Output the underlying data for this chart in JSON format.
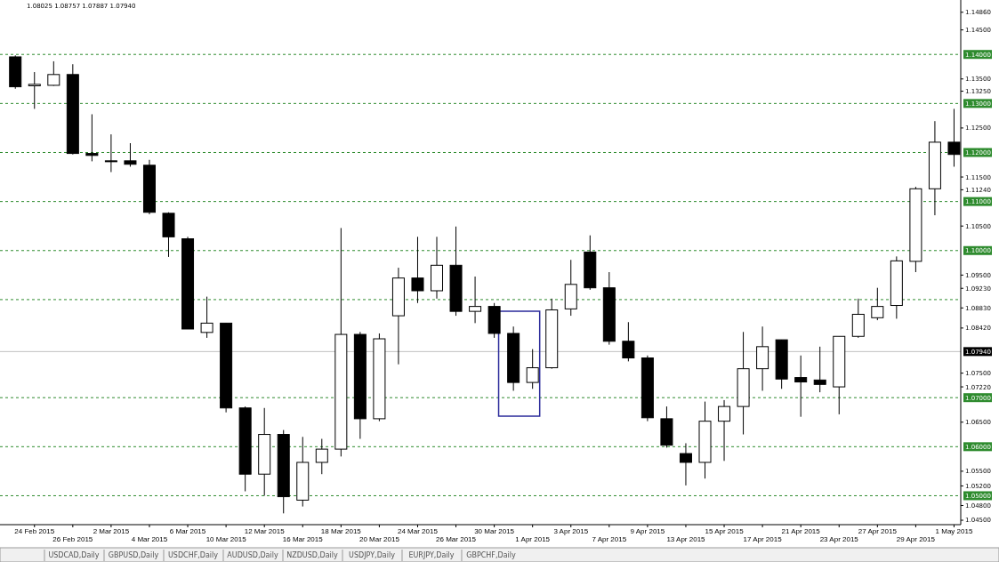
{
  "chart_data": {
    "type": "candlestick",
    "categories": [
      null,
      "24 Feb 2015",
      null,
      "26 Feb 2015",
      null,
      "2 Mar 2015",
      null,
      "4 Mar 2015",
      null,
      "6 Mar 2015",
      null,
      "10 Mar 2015",
      null,
      "12 Mar 2015",
      null,
      "16 Mar 2015",
      null,
      "18 Mar 2015",
      null,
      "20 Mar 2015",
      null,
      "24 Mar 2015",
      null,
      "26 Mar 2015",
      null,
      "30 Mar 2015",
      null,
      "1 Apr 2015",
      null,
      "3 Apr 2015",
      null,
      "7 Apr 2015",
      null,
      "9 Apr 2015",
      null,
      "13 Apr 2015",
      null,
      "15 Apr 2015",
      null,
      "17 Apr 2015",
      null,
      "21 Apr 2015",
      null,
      "23 Apr 2015",
      null,
      "27 Apr 2015",
      null,
      "29 Apr 2015",
      null,
      "1 May 2015"
    ],
    "ohlc": [
      [
        1.1395,
        1.1398,
        1.133,
        1.1334
      ],
      [
        1.1336,
        1.1364,
        1.1289,
        1.1339
      ],
      [
        1.1337,
        1.1386,
        1.1336,
        1.1359
      ],
      [
        1.1359,
        1.138,
        1.1196,
        1.1198
      ],
      [
        1.1198,
        1.1278,
        1.1182,
        1.1194
      ],
      [
        1.1183,
        1.1237,
        1.116,
        1.1182
      ],
      [
        1.1183,
        1.1219,
        1.1171,
        1.1176
      ],
      [
        1.1174,
        1.1185,
        1.1074,
        1.1078
      ],
      [
        1.1076,
        1.1078,
        1.0987,
        1.1028
      ],
      [
        1.1024,
        1.1028,
        1.084,
        1.084
      ],
      [
        1.0833,
        1.0906,
        1.0822,
        1.0852
      ],
      [
        1.0852,
        1.0852,
        1.067,
        1.0679
      ],
      [
        1.0679,
        1.0682,
        1.0509,
        1.0544
      ],
      [
        1.0544,
        1.0679,
        1.05,
        1.0625
      ],
      [
        1.0625,
        1.0634,
        1.0464,
        1.0498
      ],
      [
        1.0491,
        1.062,
        1.0478,
        1.0568
      ],
      [
        1.0568,
        1.0616,
        1.0544,
        1.0595
      ],
      [
        1.0595,
        1.1046,
        1.058,
        1.0829
      ],
      [
        1.0829,
        1.0834,
        1.0616,
        1.0657
      ],
      [
        1.0657,
        1.0831,
        1.0652,
        1.082
      ],
      [
        1.0867,
        1.0965,
        1.0768,
        1.0944
      ],
      [
        1.0944,
        1.1028,
        1.0893,
        1.0918
      ],
      [
        1.0918,
        1.1028,
        1.0902,
        1.097
      ],
      [
        1.097,
        1.1049,
        1.0867,
        1.0876
      ],
      [
        1.0876,
        1.0947,
        1.0852,
        1.0886
      ],
      [
        1.0886,
        1.0893,
        1.0822,
        1.0831
      ],
      [
        1.0831,
        1.0845,
        1.0714,
        1.0731
      ],
      [
        1.0731,
        1.0799,
        1.0718,
        1.0761
      ],
      [
        1.0761,
        1.0902,
        1.0759,
        1.0879
      ],
      [
        1.0881,
        1.0981,
        1.0867,
        1.0931
      ],
      [
        1.0997,
        1.1031,
        1.092,
        1.0924
      ],
      [
        1.0924,
        1.0956,
        1.0808,
        1.0815
      ],
      [
        1.0815,
        1.0854,
        1.0774,
        1.0781
      ],
      [
        1.0781,
        1.0786,
        1.0652,
        1.0659
      ],
      [
        1.0657,
        1.0682,
        1.0598,
        1.0603
      ],
      [
        1.0586,
        1.0607,
        1.0521,
        1.0568
      ],
      [
        1.0568,
        1.0692,
        1.0535,
        1.0652
      ],
      [
        1.0652,
        1.0695,
        1.0571,
        1.0682
      ],
      [
        1.0682,
        1.0834,
        1.0625,
        1.0759
      ],
      [
        1.0759,
        1.0845,
        1.0714,
        1.0804
      ],
      [
        1.0818,
        1.0818,
        1.0718,
        1.0738
      ],
      [
        1.0741,
        1.0786,
        1.0661,
        1.0732
      ],
      [
        1.0736,
        1.0804,
        1.0711,
        1.0727
      ],
      [
        1.0722,
        1.0825,
        1.0666,
        1.0825
      ],
      [
        1.0825,
        1.0902,
        1.0822,
        1.087
      ],
      [
        1.0863,
        1.0924,
        1.0858,
        1.0886
      ],
      [
        1.0888,
        1.0988,
        1.0861,
        1.0979
      ],
      [
        1.0978,
        1.113,
        1.0956,
        1.1126
      ],
      [
        1.1126,
        1.1264,
        1.1072,
        1.1221
      ],
      [
        1.1221,
        1.1289,
        1.1171,
        1.1196
      ]
    ],
    "ylim": [
      1.0441,
      1.1511
    ],
    "yticks": [
      {
        "value": 1.1486,
        "label": "1.14860"
      },
      {
        "value": 1.145,
        "label": "1.14500"
      },
      {
        "value": 1.135,
        "label": "1.13500"
      },
      {
        "value": 1.1325,
        "label": "1.13250"
      },
      {
        "value": 1.125,
        "label": "1.12500"
      },
      {
        "value": 1.115,
        "label": "1.11500"
      },
      {
        "value": 1.1124,
        "label": "1.11240"
      },
      {
        "value": 1.105,
        "label": "1.10500"
      },
      {
        "value": 1.095,
        "label": "1.09500"
      },
      {
        "value": 1.0923,
        "label": "1.09230"
      },
      {
        "value": 1.0883,
        "label": "1.08830"
      },
      {
        "value": 1.0842,
        "label": "1.08420"
      },
      {
        "value": 1.075,
        "label": "1.07500"
      },
      {
        "value": 1.0722,
        "label": "1.07220"
      },
      {
        "value": 1.065,
        "label": "1.06500"
      },
      {
        "value": 1.055,
        "label": "1.05500"
      },
      {
        "value": 1.052,
        "label": "1.05200"
      },
      {
        "value": 1.048,
        "label": "1.04800"
      },
      {
        "value": 1.045,
        "label": "1.04500"
      }
    ],
    "ref_lines": [
      {
        "axis": "y",
        "value": 1.14,
        "label": "1.14000",
        "color": "#2e8b2e",
        "line_style": "dashed"
      },
      {
        "axis": "y",
        "value": 1.13,
        "label": "1.13000",
        "color": "#2e8b2e",
        "line_style": "dashed"
      },
      {
        "axis": "y",
        "value": 1.12,
        "label": "1.12000",
        "color": "#2e8b2e",
        "line_style": "dashed"
      },
      {
        "axis": "y",
        "value": 1.11,
        "label": "1.11000",
        "color": "#2e8b2e",
        "line_style": "dashed"
      },
      {
        "axis": "y",
        "value": 1.1,
        "label": "1.10000",
        "color": "#2e8b2e",
        "line_style": "dashed"
      },
      {
        "axis": "y",
        "value": 1.09,
        "label": null,
        "color": "#2e8b2e",
        "line_style": "dashed"
      },
      {
        "axis": "y",
        "value": 1.07,
        "label": "1.07000",
        "color": "#2e8b2e",
        "line_style": "dashed"
      },
      {
        "axis": "y",
        "value": 1.06,
        "label": "1.06000",
        "color": "#2e8b2e",
        "line_style": "dashed"
      },
      {
        "axis": "y",
        "value": 1.05,
        "label": "1.05000",
        "color": "#2e8b2e",
        "line_style": "dashed"
      },
      {
        "axis": "y",
        "value": 1.0794,
        "label": "1.07940",
        "color": "#c0c0c0",
        "line_style": "solid"
      }
    ],
    "annotations": [
      "1.08025 1.08757 1.07887 1.07940",
      "USDCAD,Daily",
      "GBPUSD,Daily",
      "USDCHF,Daily",
      "AUDUSD,Daily",
      "NZDUSD,Daily",
      "USDJPY,Daily",
      "EURJPY,Daily",
      "GBPCHF,Daily"
    ],
    "grid": false
  }
}
